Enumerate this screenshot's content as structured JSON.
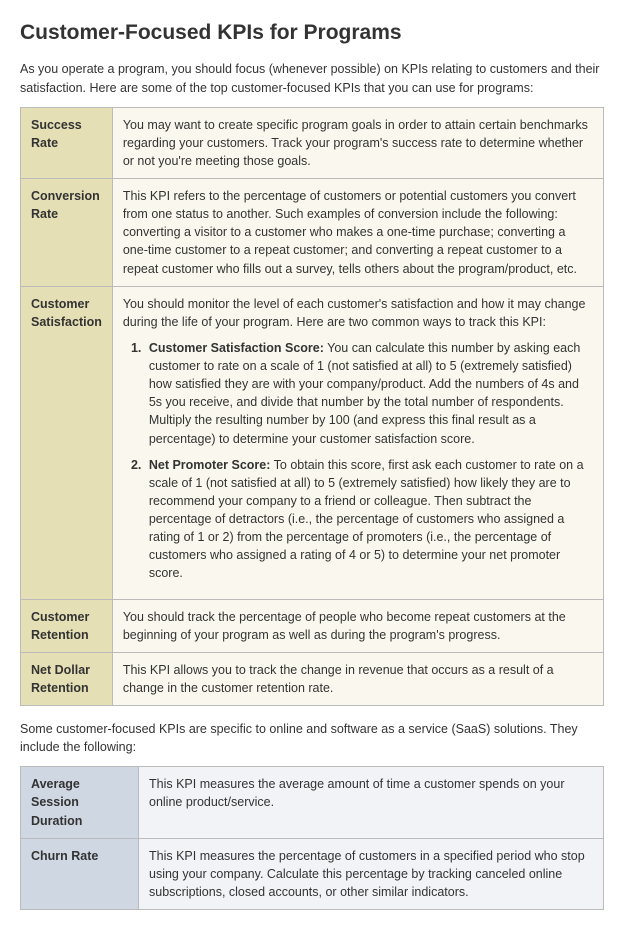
{
  "title": "Customer-Focused KPIs for Programs",
  "intro": "As you operate a program, you should focus (whenever possible) on KPIs relating to customers and their satisfaction. Here are some of the top customer-focused KPIs that you can use for programs:",
  "table_a": {
    "header_bg": "#e5dfb5",
    "body_bg": "#faf8ee",
    "border_color": "#bbbbbb",
    "rows": [
      {
        "kpi": "Success Rate",
        "desc": "You may want to create specific program goals in order to attain certain benchmarks regarding your customers. Track your program's success rate to determine whether or not you're meeting those goals."
      },
      {
        "kpi": "Conversion Rate",
        "desc": "This KPI refers to the percentage of customers or potential customers you convert from one status to another. Such examples of conversion include the following: converting a visitor to a customer who makes a one-time purchase; converting a one-time customer to a repeat customer; and converting a repeat customer to a repeat customer who fills out a survey, tells others about the program/product, etc."
      },
      {
        "kpi": "Customer Satisfaction",
        "desc_lead": "You should monitor the level of each customer's satisfaction and how it may change during the life of your program. Here are two common ways to track this KPI:",
        "list": [
          {
            "label": "Customer Satisfaction Score:",
            "text": " You can calculate this number by asking each customer to rate on a scale of 1 (not satisfied at all) to 5 (extremely satisfied) how satisfied they are with your company/product. Add the numbers of 4s and 5s you receive, and divide that number by the total number of respondents. Multiply the resulting number by 100 (and express this final result as a percentage) to determine your customer satisfaction score."
          },
          {
            "label": "Net Promoter Score:",
            "text": " To obtain this score, first ask each customer to rate on a scale of 1 (not satisfied at all) to 5 (extremely satisfied) how likely they are to recommend your company to a friend or colleague. Then subtract the percentage of detractors (i.e., the percentage of customers who assigned a rating of 1 or 2) from the percentage of promoters (i.e., the percentage of customers who assigned a rating of 4 or 5) to determine your net promoter score."
          }
        ]
      },
      {
        "kpi": "Customer Retention",
        "desc": "You should track the percentage of people who become repeat customers at the beginning of your program as well as during the program's progress."
      },
      {
        "kpi": "Net Dollar Retention",
        "desc": "This KPI allows you to track the change in revenue that occurs as a result of a change in the customer retention rate."
      }
    ]
  },
  "mid_para": "Some customer-focused KPIs are specific to online and software as a service (SaaS) solutions. They include the following:",
  "table_b": {
    "header_bg": "#cfd7e2",
    "body_bg": "#f1f3f7",
    "border_color": "#bbbbbb",
    "rows": [
      {
        "kpi": "Average Session Duration",
        "desc": "This KPI measures the average amount of time a customer spends on your online product/service."
      },
      {
        "kpi": "Churn Rate",
        "desc": "This KPI measures the percentage of customers in a specified period who stop using your company. Calculate this percentage by tracking canceled online subscriptions, closed accounts, or other similar indicators."
      }
    ]
  }
}
